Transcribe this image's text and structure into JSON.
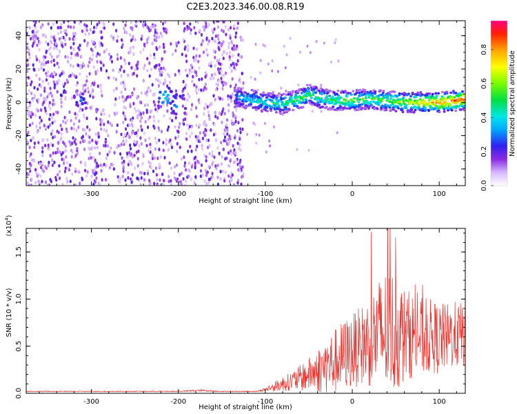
{
  "title": "C2E3.2023.346.00.08.R19",
  "chart_data": [
    {
      "type": "heatmap",
      "xlabel": "Height of straight line (km)",
      "ylabel": "Frequency (Hz)",
      "xlim": [
        -375,
        130
      ],
      "ylim": [
        -50,
        49
      ],
      "xticks": [
        -300,
        -200,
        -100,
        0,
        100
      ],
      "xtick_labels": [
        "-300",
        "-200",
        "-100",
        "0",
        "100"
      ],
      "yticks": [
        -40,
        -20,
        0,
        20,
        40
      ],
      "ytick_labels": [
        "-40",
        "-20",
        "0",
        "20",
        "40"
      ],
      "grid": false,
      "colorbar": {
        "label": "Normalized spectral amplitude",
        "range": [
          0,
          0.97
        ],
        "ticks": [
          0.0,
          0.2,
          0.4,
          0.6,
          0.8
        ],
        "tick_labels": [
          "0.0",
          "0.2",
          "0.4",
          "0.6",
          "0.8"
        ],
        "colormap": "white-purple-blue-cyan-green-yellow-red"
      },
      "regions": [
        {
          "x_range": [
            -375,
            -125
          ],
          "description_values": {
            "typical_amplitude": 0.15,
            "frequency_range": [
              -50,
              49
            ]
          }
        },
        {
          "x_range": [
            -125,
            130
          ],
          "description_values": {
            "typical_amplitude": 0.45,
            "center_frequency": 1
          }
        }
      ],
      "ridge": {
        "x": [
          -135,
          -120,
          -100,
          -80,
          -60,
          -50,
          -40,
          -20,
          0,
          20,
          40,
          60,
          80,
          100,
          120,
          130
        ],
        "y": [
          3,
          2,
          0,
          -1,
          2,
          5,
          3,
          1,
          1,
          2,
          1,
          0,
          0,
          0,
          1,
          2
        ],
        "amplitude": [
          0.35,
          0.4,
          0.45,
          0.5,
          0.55,
          0.5,
          0.5,
          0.55,
          0.6,
          0.55,
          0.6,
          0.65,
          0.75,
          0.85,
          0.9,
          0.95
        ]
      },
      "hotspots": [
        {
          "x": -312,
          "y": 1,
          "amplitude": 0.3
        },
        {
          "x": -215,
          "y": 3,
          "amplitude": 0.45
        },
        {
          "x": -200,
          "y": -1,
          "amplitude": 0.4
        }
      ]
    },
    {
      "type": "line",
      "xlabel": "Height of straight line (km)",
      "ylabel": "SNR (10 * v/v)",
      "y_multiplier_label": "(x10",
      "y_multiplier_exp": "4",
      "xlim": [
        -375,
        130
      ],
      "ylim": [
        0,
        1.75
      ],
      "xticks": [
        -300,
        -200,
        -100,
        0,
        100
      ],
      "xtick_labels": [
        "-300",
        "-200",
        "-100",
        "0",
        "100"
      ],
      "yticks": [
        0.0,
        0.5,
        1.0,
        1.5
      ],
      "ytick_labels": [
        "0.0",
        "0.5",
        "1.0",
        "1.5"
      ],
      "grid": false,
      "color": "#e8332e",
      "x": [
        -375,
        -200,
        -175,
        -150,
        -110,
        -100,
        -90,
        -80,
        -70,
        -60,
        -50,
        -40,
        -30,
        -20,
        -10,
        0,
        10,
        20,
        30,
        40,
        50,
        60,
        70,
        80,
        90,
        100,
        110,
        120,
        130
      ],
      "y": [
        0.02,
        0.02,
        0.03,
        0.02,
        0.02,
        0.04,
        0.07,
        0.1,
        0.13,
        0.16,
        0.2,
        0.24,
        0.29,
        0.34,
        0.4,
        0.45,
        0.5,
        0.56,
        0.62,
        0.66,
        0.64,
        0.62,
        0.62,
        0.6,
        0.6,
        0.58,
        0.6,
        0.62,
        0.62
      ],
      "y_spread": [
        0.005,
        0.005,
        0.01,
        0.005,
        0.005,
        0.02,
        0.05,
        0.08,
        0.1,
        0.14,
        0.18,
        0.24,
        0.3,
        0.35,
        0.38,
        0.4,
        0.42,
        0.5,
        0.6,
        0.7,
        0.65,
        0.5,
        0.45,
        0.42,
        0.4,
        0.38,
        0.36,
        0.36,
        0.35
      ]
    }
  ]
}
